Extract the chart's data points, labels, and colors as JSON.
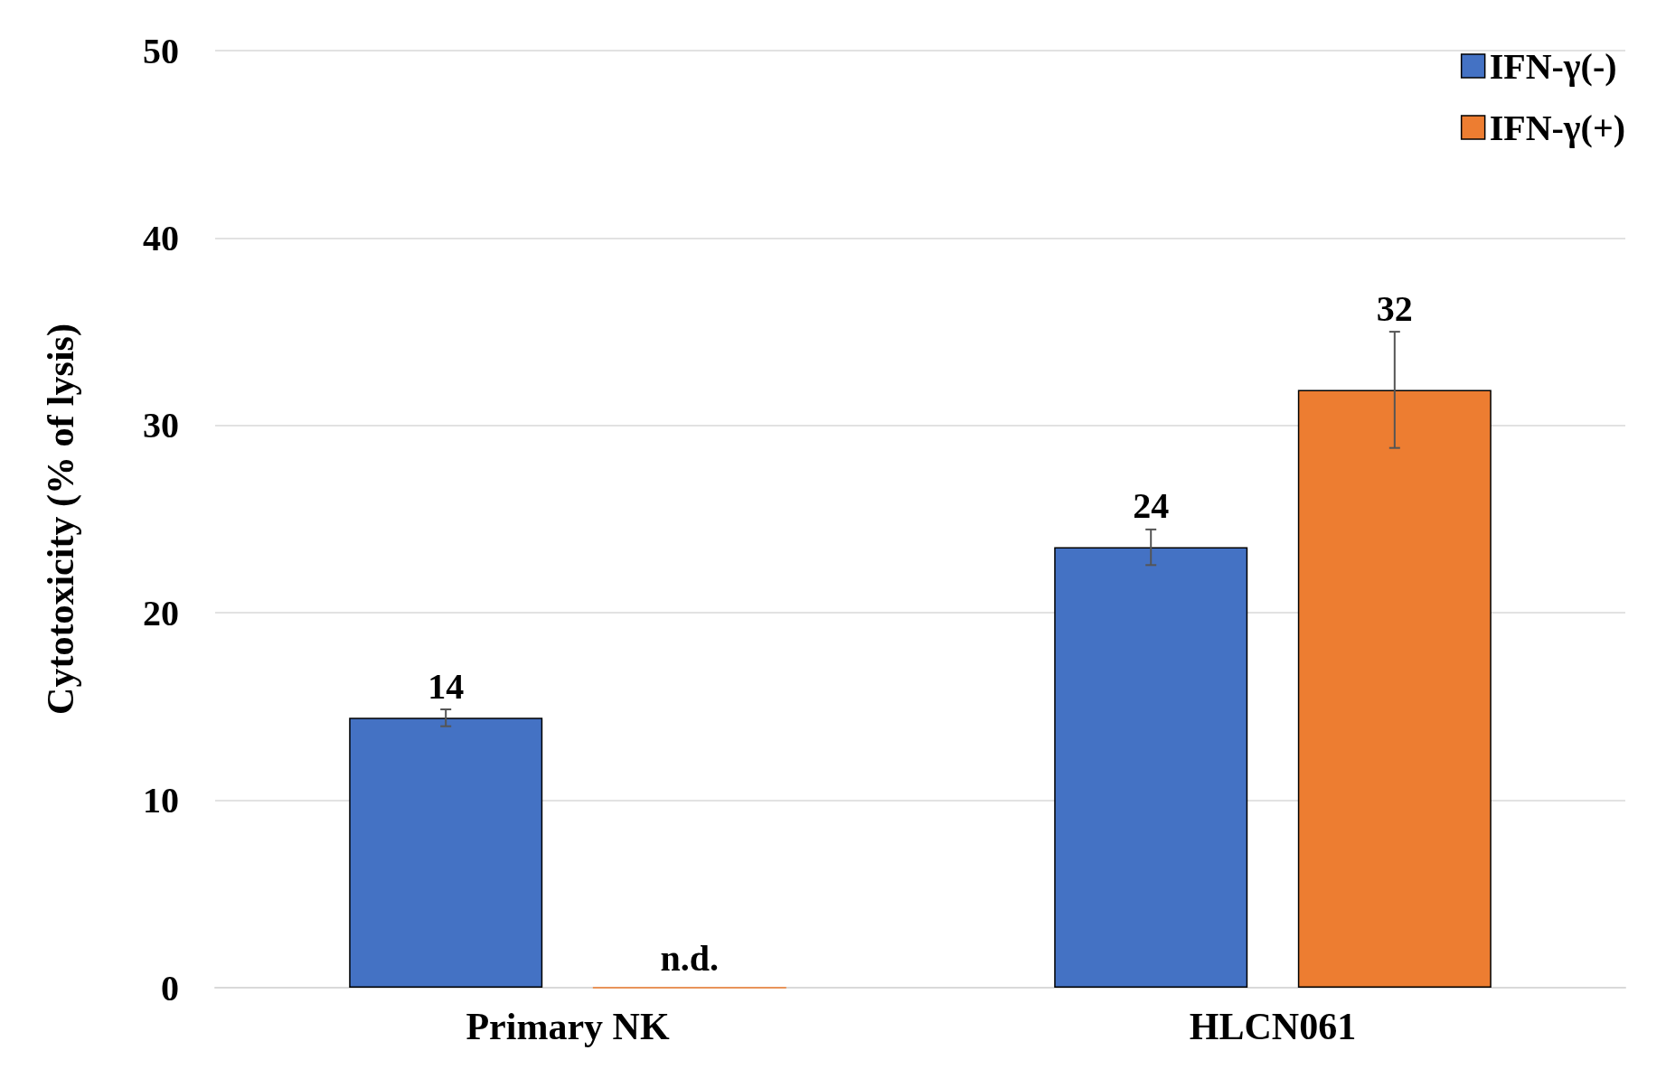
{
  "chart_data": {
    "type": "bar",
    "ylabel": "Cytotoxicity (% of lysis)",
    "categories": [
      "Primary NK",
      "HLCN061"
    ],
    "series": [
      {
        "name": "IFN-γ(-)",
        "color": "#4472c4",
        "values": [
          14.4,
          23.5
        ],
        "errors": [
          0.45,
          0.95
        ],
        "value_labels": [
          "14",
          "24"
        ]
      },
      {
        "name": "IFN-γ(+)",
        "color": "#ed7d31",
        "values": [
          0,
          31.9
        ],
        "errors": [
          null,
          3.1
        ],
        "value_labels": [
          "n.d.",
          "32"
        ]
      }
    ],
    "ylim": [
      0,
      50
    ],
    "yticks": [
      0,
      10,
      20,
      30,
      40,
      50
    ],
    "grid": "y",
    "legend": "top right"
  }
}
